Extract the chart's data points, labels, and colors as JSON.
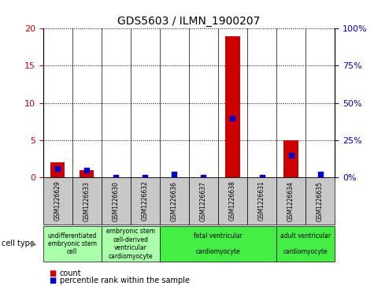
{
  "title": "GDS5603 / ILMN_1900207",
  "samples": [
    "GSM1226629",
    "GSM1226633",
    "GSM1226630",
    "GSM1226632",
    "GSM1226636",
    "GSM1226637",
    "GSM1226638",
    "GSM1226631",
    "GSM1226634",
    "GSM1226635"
  ],
  "counts": [
    2,
    1,
    0,
    0,
    0,
    0,
    19,
    0,
    5,
    0
  ],
  "percentiles": [
    6,
    5,
    0,
    0,
    2,
    0,
    40,
    0,
    15,
    2
  ],
  "ylim_left": [
    0,
    20
  ],
  "ylim_right": [
    0,
    100
  ],
  "yticks_left": [
    0,
    5,
    10,
    15,
    20
  ],
  "yticks_right": [
    0,
    25,
    50,
    75,
    100
  ],
  "cell_types": [
    {
      "label": "undifferentiated\nembryonic stem\ncell",
      "cols": [
        0,
        1
      ],
      "color": "#aaffaa"
    },
    {
      "label": "embryonic stem\ncell-derived\nventricular\ncardiomyocyte",
      "cols": [
        2,
        3
      ],
      "color": "#aaffaa"
    },
    {
      "label": "fetal ventricular\n\ncardiomyocyte",
      "cols": [
        4,
        5,
        6,
        7
      ],
      "color": "#44ee44"
    },
    {
      "label": "adult ventricular\n\ncardiomyocyte",
      "cols": [
        8,
        9
      ],
      "color": "#44ee44"
    }
  ],
  "bar_color": "#cc0000",
  "dot_color": "#0000cc",
  "bar_width": 0.5,
  "dot_size": 15,
  "background_color": "#ffffff",
  "tick_label_color_left": "#cc0000",
  "tick_label_color_right": "#0000cc",
  "legend_count_color": "#cc0000",
  "legend_percentile_color": "#0000cc",
  "sample_bg": "#c8c8c8",
  "title_fontsize": 10,
  "tick_fontsize": 8,
  "sample_label_fontsize": 5.5,
  "cell_type_fontsize": 5.5
}
